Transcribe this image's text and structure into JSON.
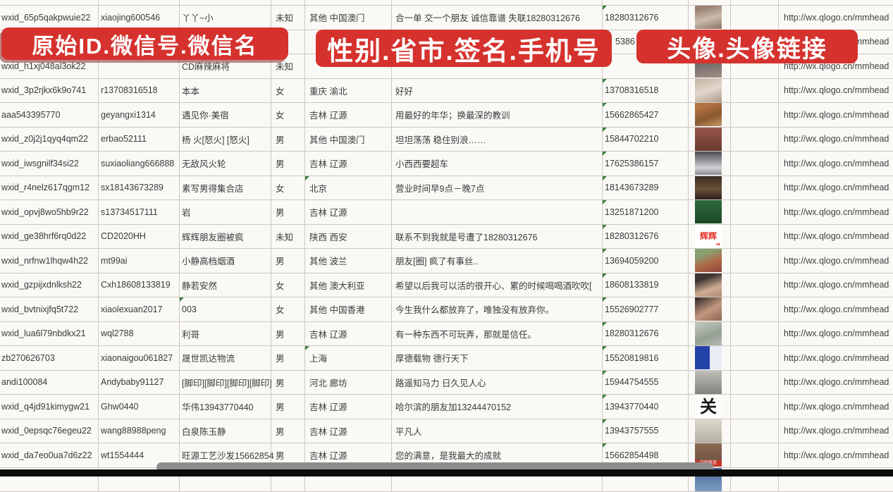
{
  "banners": {
    "id_banner": "原始ID.微信号.微信名",
    "profile_banner": "性别.省市.签名.手机号",
    "avatar_banner": "头像.头像链接"
  },
  "colors": {
    "banner_red": "#d5322e",
    "grid_line": "#ccc8c2",
    "cell_text": "#3a3a3a",
    "indicator_green": "#3c8044",
    "bottom_bar": "#0c0c0c",
    "scroll_thumb": "#8e8e8e",
    "sheet_bg": "#f8f7f4"
  },
  "table": {
    "column_labels": [
      "原始ID",
      "微信号",
      "微信名",
      "性别",
      "省市",
      "签名",
      "手机号",
      "头像",
      "头像链接"
    ],
    "rows": [
      {
        "wxid": "wxid_65p5qakpwuie22",
        "wechat_id": "xiaojing600546",
        "name": "丫丫~小",
        "gender": "未知",
        "region": "其他 中国澳门",
        "signature": "合一单 交一个朋友 诚信靠谱 失联18280312676",
        "phone": "18280312676",
        "avatar": {
          "desc": "woman-long-dark-hair",
          "bg": "linear-gradient(165deg,#9a8272 15%,#cabcae 55%,#8a7262)"
        },
        "avatar_link": "http://wx.qlogo.cn/mmhead",
        "indicators": [
          "phone"
        ]
      },
      {
        "wxid": "",
        "wechat_id": "",
        "name": "",
        "gender": "",
        "region": "",
        "signature": "",
        "phone": "5386",
        "phone_indent": true,
        "avatar": {
          "desc": "photo-hidden-behind-banner",
          "bg": "linear-gradient(180deg,#6a8ca8,#9ab2c6)"
        },
        "avatar_link": "http://wx.qlogo.cn/mmhead",
        "indicators": []
      },
      {
        "wxid": "wxid_h1xj048al3ok22",
        "wechat_id": "",
        "name": "CD麻辣麻将",
        "gender": "未知",
        "region": "",
        "signature": "",
        "phone": "",
        "avatar": {
          "desc": "woman-portrait",
          "bg": "linear-gradient(170deg,#56565e,#a08e82)"
        },
        "avatar_link": "http://wx.qlogo.cn/mmhead",
        "indicators": []
      },
      {
        "wxid": "wxid_3p2rjkx6k9o741",
        "wechat_id": "r13708316518",
        "name": "本本",
        "gender": "女",
        "region": "重庆 渝北",
        "signature": "好好",
        "phone": "13708316518",
        "avatar": {
          "desc": "woman-portrait-light",
          "bg": "linear-gradient(160deg,#c2b2a2,#e2d6ca 50%,#aa9a8a)"
        },
        "avatar_link": "http://wx.qlogo.cn/mmhead",
        "indicators": [
          "phone"
        ]
      },
      {
        "wxid": "aaa543395770",
        "wechat_id": "geyangxi1314",
        "name": "遇见你·美宿",
        "gender": "女",
        "region": "吉林 辽源",
        "signature": "用最好的年华；换最深的教训",
        "phone": "15662865427",
        "avatar": {
          "desc": "autumn-branches",
          "bg": "linear-gradient(160deg,#b27242 20%,#8a5830 60%,#c89868)"
        },
        "avatar_link": "http://wx.qlogo.cn/mmhead",
        "indicators": [
          "phone"
        ]
      },
      {
        "wxid": "wxid_z0j2j1qyq4qm22",
        "wechat_id": "erbao52111",
        "name": "杨 火[怒火] [怒火]",
        "gender": "男",
        "region": "其他 中国澳门",
        "signature": "坦坦荡荡 稳住别浪……",
        "phone": "15844702210",
        "avatar": {
          "desc": "figurine-collection",
          "bg": "linear-gradient(180deg,#96564a,#6a3a30)"
        },
        "avatar_link": "http://wx.qlogo.cn/mmhead",
        "indicators": [
          "phone"
        ]
      },
      {
        "wxid": "wxid_iwsgnilf34si22",
        "wechat_id": "suxiaoliang666888",
        "name": "无敌风火轮",
        "gender": "男",
        "region": "吉林 辽源",
        "signature": "小西西要超车",
        "phone": "17625386157",
        "avatar": {
          "desc": "child-in-car-seat",
          "bg": "linear-gradient(180deg,#4a4a52,#d0d0d4 70%,#8a8a90)"
        },
        "avatar_link": "http://wx.qlogo.cn/mmhead",
        "indicators": [
          "phone"
        ]
      },
      {
        "wxid": "wxid_r4nelz617qgm12",
        "wechat_id": "sx18143673289",
        "name": "素写男得集合店",
        "gender": "女",
        "region": "北京",
        "signature": "营业时间早9点－晚7点",
        "phone": "18143673289",
        "avatar": {
          "desc": "night-storefront",
          "bg": "linear-gradient(180deg,#382c24,#6a5038 55%,#2c211c)"
        },
        "avatar_link": "http://wx.qlogo.cn/mmhead",
        "indicators": [
          "phone",
          "region"
        ]
      },
      {
        "wxid": "wxid_opvj8wo5hb9r22",
        "wechat_id": "s13734517111",
        "name": "岩",
        "gender": "男",
        "region": "吉林 辽源",
        "signature": "",
        "phone": "13251871200",
        "avatar": {
          "desc": "green-poster",
          "bg": "linear-gradient(180deg,#2e6a3c,#1c4828)"
        },
        "avatar_link": "http://wx.qlogo.cn/mmhead",
        "indicators": [
          "phone"
        ]
      },
      {
        "wxid": "wxid_ge38hrf6rq0d22",
        "wechat_id": "CD2020HH",
        "name": "辉辉朋友圈被疯",
        "gender": "未知",
        "region": "陕西 西安",
        "signature": "联系不到我就是号遭了18280312676",
        "phone": "18280312676",
        "avatar": {
          "desc": "white-card-red-text-huihui",
          "bg": "#ffffff",
          "label": "辉辉",
          "label_style": "red-text",
          "sub_label": "I❤"
        },
        "avatar_link": "http://wx.qlogo.cn/mmhead",
        "indicators": [
          "phone"
        ]
      },
      {
        "wxid": "wxid_nrfnw1lhqw4h22",
        "wechat_id": "mt99ai",
        "name": "小静高档烟酒",
        "gender": "男",
        "region": "其他 波兰",
        "signature": "朋友[圈] 疯了有事丝..",
        "phone": "13694059200",
        "avatar": {
          "desc": "woman-with-sunglasses",
          "bg": "linear-gradient(160deg,#88a070 25%,#b06848 60%,#8a4838)"
        },
        "avatar_link": "http://wx.qlogo.cn/mmhead",
        "indicators": [
          "phone"
        ]
      },
      {
        "wxid": "wxid_gzpijxdnlksh22",
        "wechat_id": "Cxh18608133819",
        "name": "静若安然",
        "gender": "女",
        "region": "其他 澳大利亚",
        "signature": "希望以后我可以活的很开心、累的时候喝喝酒吹吹[",
        "phone": "18608133819",
        "avatar": {
          "desc": "woman-selfie",
          "bg": "linear-gradient(160deg,#3c3430 25%,#d0ac94 65%,#b08870)"
        },
        "avatar_link": "http://wx.qlogo.cn/mmhead",
        "indicators": [
          "phone"
        ]
      },
      {
        "wxid": "wxid_bvtnixjfq5t722",
        "wechat_id": "xiaolexuan2017",
        "name": "003",
        "gender": "女",
        "region": "其他 中国香港",
        "signature": "今生我什么都放弃了，唯独没有放弃你。",
        "phone": "15526902777",
        "avatar": {
          "desc": "woman-selfie-dark-hair",
          "bg": "linear-gradient(150deg,#2e2622,#c49880 55%,#8a6450)"
        },
        "avatar_link": "http://wx.qlogo.cn/mmhead",
        "indicators": [
          "phone",
          "name"
        ]
      },
      {
        "wxid": "wxid_lua6l79nbdkx21",
        "wechat_id": "wql2788",
        "name": "利哥",
        "gender": "男",
        "region": "吉林 辽源",
        "signature": "有一种东西不可玩弄，那就是信任。",
        "phone": "18280312676",
        "avatar": {
          "desc": "person-in-white-hood",
          "bg": "linear-gradient(160deg,#c4c8c0,#94a094 60%,#b8bcb4)"
        },
        "avatar_link": "http://wx.qlogo.cn/mmhead",
        "indicators": [
          "phone"
        ]
      },
      {
        "wxid": "zb270626703",
        "wechat_id": "xiaonaigou061827",
        "name": "晟世凯达物流",
        "gender": "男",
        "region": "上海",
        "signature": "厚德载物 德行天下",
        "phone": "15520819816",
        "avatar": {
          "desc": "blue-graphic-with-qr-code",
          "bg": "linear-gradient(90deg,#2544aa 55%,#e8ecf4 55%)"
        },
        "avatar_link": "http://wx.qlogo.cn/mmhead",
        "indicators": [
          "phone",
          "region"
        ]
      },
      {
        "wxid": "andi100084",
        "wechat_id": "Andybaby91127",
        "name": "[脚印][脚印][脚印][脚印]",
        "gender": "男",
        "region": "河北 廊坊",
        "signature": "路遥知马力 日久见人心",
        "phone": "15944754555",
        "avatar": {
          "desc": "people-on-stone-steps",
          "bg": "linear-gradient(180deg,#c0beb8,#84827c)"
        },
        "avatar_link": "http://wx.qlogo.cn/mmhead",
        "indicators": [
          "phone"
        ]
      },
      {
        "wxid": "wxid_q4jd91kimygw21",
        "wechat_id": "Ghw0440",
        "name": "华伟13943770440",
        "gender": "男",
        "region": "吉林 辽源",
        "signature": "哈尔滨的朋友加13244470152",
        "phone": "13943770440",
        "avatar": {
          "desc": "black-calligraphy-guan",
          "bg": "#fcfcfa",
          "label": "关",
          "label_style": "calligraphy"
        },
        "avatar_link": "http://wx.qlogo.cn/mmhead",
        "indicators": [
          "phone"
        ]
      },
      {
        "wxid": "wxid_0epsqc76egeu22",
        "wechat_id": "wang88988peng",
        "name": "白泉陈玉静",
        "gender": "男",
        "region": "吉林 辽源",
        "signature": "平凡人",
        "phone": "13943757555",
        "avatar": {
          "desc": "person-on-beach",
          "bg": "linear-gradient(180deg,#dcd8cc,#b4b0a4)"
        },
        "avatar_link": "http://wx.qlogo.cn/mmhead",
        "indicators": [
          "phone"
        ]
      },
      {
        "wxid": "wxid_da7eo0ua7d6z22",
        "wechat_id": "wt1554444",
        "name": "旺源工艺沙发15662854",
        "gender": "男",
        "region": "吉林 辽源",
        "signature": "您的满意，是我最大的成就",
        "phone": "15662854498",
        "avatar": {
          "desc": "brown-photo-china-fangsong-strip",
          "bg": "linear-gradient(180deg,#8a6a54,#6a4e3e)",
          "label": "中国放送",
          "label_style": "bottom-strip"
        },
        "avatar_link": "http://wx.qlogo.cn/mmhead",
        "indicators": [
          "phone"
        ]
      },
      {
        "wxid": "",
        "wechat_id": "",
        "name": "",
        "gender": "",
        "region": "",
        "signature": "",
        "phone": "",
        "avatar": {
          "desc": "partial-blue-avatar",
          "bg": "linear-gradient(180deg,#4a6a9a,#7a9ac0)"
        },
        "avatar_link": "",
        "indicators": []
      }
    ]
  }
}
